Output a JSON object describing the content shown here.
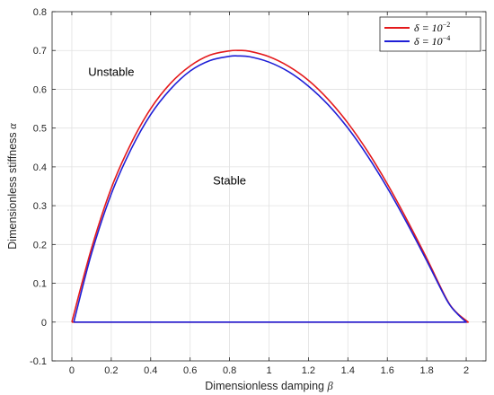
{
  "chart_data": {
    "type": "line",
    "xlabel": "Dimensionless damping",
    "xlabel_symbol": "β",
    "ylabel": "Dimensionless stiffness",
    "ylabel_symbol": "α",
    "xlim": [
      -0.1,
      2.1
    ],
    "ylim": [
      -0.1,
      0.8
    ],
    "xticks": [
      0,
      0.2,
      0.4,
      0.6,
      0.8,
      1,
      1.2,
      1.4,
      1.6,
      1.8,
      2
    ],
    "xtick_labels": [
      "0",
      "0.2",
      "0.4",
      "0.6",
      "0.8",
      "1",
      "1.2",
      "1.4",
      "1.6",
      "1.8",
      "2"
    ],
    "yticks": [
      -0.1,
      0,
      0.1,
      0.2,
      0.3,
      0.4,
      0.5,
      0.6,
      0.7,
      0.8
    ],
    "ytick_labels": [
      "-0.1",
      "0",
      "0.1",
      "0.2",
      "0.3",
      "0.4",
      "0.5",
      "0.6",
      "0.7",
      "0.8"
    ],
    "grid": true,
    "legend_position": "top-right",
    "series": [
      {
        "name": "δ = 10^-2",
        "legend_base": "δ = 10",
        "legend_exp": "−2",
        "color": "#e41a1c",
        "x": [
          0,
          0.1,
          0.2,
          0.3,
          0.4,
          0.5,
          0.6,
          0.7,
          0.8,
          0.85,
          0.9,
          1.0,
          1.1,
          1.2,
          1.3,
          1.4,
          1.5,
          1.6,
          1.7,
          1.8,
          1.9,
          1.95,
          2.01,
          0
        ],
        "y": [
          0,
          0.19,
          0.345,
          0.46,
          0.55,
          0.615,
          0.66,
          0.688,
          0.699,
          0.7,
          0.698,
          0.684,
          0.659,
          0.623,
          0.574,
          0.513,
          0.44,
          0.356,
          0.263,
          0.164,
          0.06,
          0.025,
          0,
          0
        ]
      },
      {
        "name": "δ = 10^-4",
        "legend_base": "δ = 10",
        "legend_exp": "−4",
        "color": "#1f1fd6",
        "x": [
          0.01,
          0.1,
          0.2,
          0.3,
          0.4,
          0.5,
          0.6,
          0.7,
          0.8,
          0.84,
          0.9,
          1.0,
          1.1,
          1.2,
          1.3,
          1.4,
          1.5,
          1.6,
          1.7,
          1.8,
          1.9,
          1.95,
          2.0,
          0.01
        ],
        "y": [
          0,
          0.177,
          0.33,
          0.445,
          0.535,
          0.6,
          0.647,
          0.674,
          0.685,
          0.686,
          0.684,
          0.67,
          0.645,
          0.608,
          0.56,
          0.5,
          0.428,
          0.346,
          0.255,
          0.158,
          0.058,
          0.024,
          0,
          0
        ]
      }
    ],
    "annotations": [
      {
        "text": "Unstable",
        "x": 0.2,
        "y": 0.635
      },
      {
        "text": "Stable",
        "x": 0.8,
        "y": 0.355
      }
    ]
  }
}
